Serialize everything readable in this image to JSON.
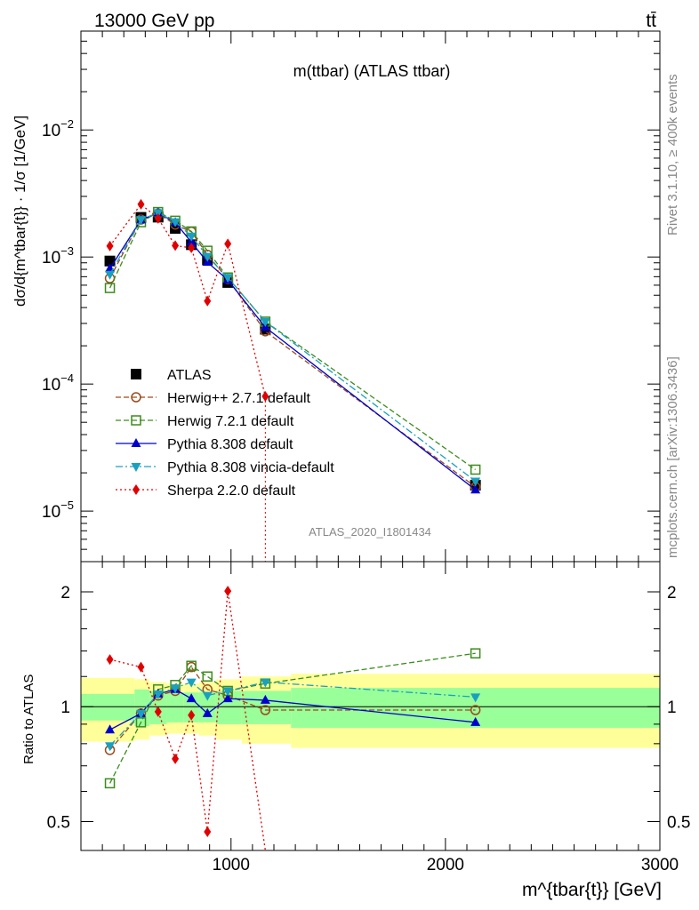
{
  "header": {
    "left": "13000 GeV pp",
    "right": "tt̄"
  },
  "side": {
    "rivet": "Rivet 3.1.10, ≥ 400k events",
    "mcplots": "mcplots.cern.ch [arXiv:1306.3436]"
  },
  "chart_data": [
    {
      "type": "line",
      "title": "m(ttbar) (ATLAS ttbar)",
      "watermark": "ATLAS_2020_I1801434",
      "ylabel": "dσ/d{m^tbar{t}} · 1/σ [1/GeV]",
      "yscale": "log",
      "ylim": [
        4e-06,
        0.06
      ],
      "xlim": [
        300,
        3000
      ],
      "y_ticks": [
        "10^{-5}",
        "10^{-4}",
        "10^{-3}",
        "10^{-2}"
      ],
      "legend_position": "center-left",
      "x": [
        435,
        580,
        660,
        740,
        815,
        890,
        985,
        1160,
        2140
      ],
      "series": [
        {
          "name": "ATLAS",
          "color": "#000000",
          "marker": "square-filled",
          "values": [
            0.00093,
            0.00205,
            0.00206,
            0.00168,
            0.00125,
            0.00095,
            0.00063,
            0.00027,
            1.6e-05
          ]
        },
        {
          "name": "Herwig++ 2.7.1 default",
          "color": "#9c4a1a",
          "marker": "circle-open",
          "dash": "dashed",
          "values": [
            0.00068,
            0.00197,
            0.0022,
            0.0018,
            0.00158,
            0.00104,
            0.00067,
            0.00026,
            1.55e-05
          ]
        },
        {
          "name": "Herwig 7.2.1 default",
          "color": "#3c8c1c",
          "marker": "square-open",
          "dash": "dashed",
          "values": [
            0.00057,
            0.00188,
            0.00226,
            0.00193,
            0.00159,
            0.00112,
            0.00069,
            0.00031,
            2.12e-05
          ]
        },
        {
          "name": "Pythia 8.308 default",
          "color": "#0000cc",
          "marker": "triangle-up",
          "dash": "solid",
          "values": [
            0.00081,
            0.00196,
            0.00222,
            0.00187,
            0.00131,
            0.00091,
            0.00066,
            0.00028,
            1.47e-05
          ]
        },
        {
          "name": "Pythia 8.308 vincia-default",
          "color": "#1aa0bf",
          "marker": "triangle-down",
          "dash": "dashdot",
          "values": [
            0.00073,
            0.00197,
            0.00223,
            0.00189,
            0.00146,
            0.00101,
            0.00069,
            0.00031,
            1.72e-05
          ]
        },
        {
          "name": "Sherpa 2.2.0 default",
          "color": "#e00000",
          "marker": "diamond",
          "dash": "dotted",
          "values": [
            0.00122,
            0.0026,
            0.00201,
            0.00123,
            0.00118,
            0.00045,
            0.00127,
            8e-05,
            null
          ]
        }
      ]
    },
    {
      "type": "line",
      "ylabel": "Ratio to ATLAS",
      "xlabel": "m^{tbar{t}} [GeV]",
      "ylim": [
        0.42,
        2.4
      ],
      "yscale": "log",
      "y_ticks": [
        0.5,
        1,
        2
      ],
      "xlim": [
        300,
        3000
      ],
      "x_ticks": [
        1000,
        2000,
        3000
      ],
      "x": [
        435,
        580,
        660,
        740,
        815,
        890,
        985,
        1160,
        2140
      ],
      "band_edges": [
        300,
        550,
        620,
        700,
        780,
        850,
        930,
        1050,
        1280,
        3000
      ],
      "band_inner": [
        0.08,
        0.11,
        0.1,
        0.09,
        0.09,
        0.09,
        0.1,
        0.1,
        0.12
      ],
      "band_outer": [
        0.19,
        0.18,
        0.16,
        0.15,
        0.15,
        0.16,
        0.18,
        0.2,
        0.22
      ],
      "series": [
        {
          "name": "Herwig++ 2.7.1 default",
          "values": [
            0.77,
            0.96,
            1.07,
            1.1,
            1.27,
            1.11,
            1.07,
            0.98,
            0.98
          ]
        },
        {
          "name": "Herwig 7.2.1 default",
          "values": [
            0.63,
            0.91,
            1.11,
            1.14,
            1.28,
            1.2,
            1.1,
            1.15,
            1.38
          ]
        },
        {
          "name": "Pythia 8.308 default",
          "values": [
            0.87,
            0.96,
            1.08,
            1.11,
            1.05,
            0.96,
            1.05,
            1.04,
            0.91
          ]
        },
        {
          "name": "Pythia 8.308 vincia-default",
          "values": [
            0.79,
            0.96,
            1.08,
            1.12,
            1.16,
            1.07,
            1.1,
            1.16,
            1.06
          ]
        },
        {
          "name": "Sherpa 2.2.0 default",
          "values": [
            1.33,
            1.27,
            0.97,
            0.73,
            0.95,
            0.47,
            2.01,
            0.3,
            null
          ]
        }
      ]
    }
  ]
}
